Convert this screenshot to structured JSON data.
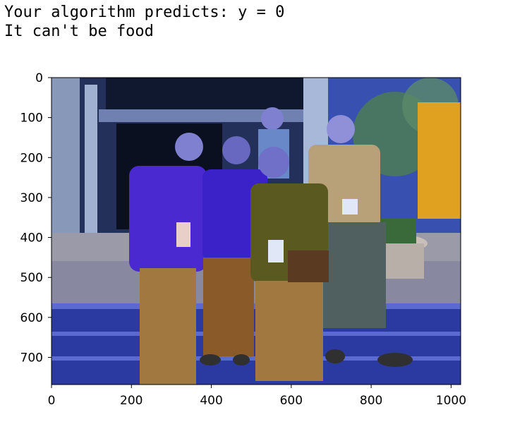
{
  "output": {
    "lines": [
      "",
      "Your algorithm predicts: y = 0",
      "It can't be food"
    ]
  },
  "image_plot": {
    "description_icon": "photo-of-five-people-icon",
    "x_ticks": [
      "0",
      "200",
      "400",
      "600",
      "800",
      "1000"
    ],
    "y_ticks": [
      "0",
      "100",
      "200",
      "300",
      "400",
      "500",
      "600",
      "700"
    ],
    "x_range": [
      0,
      1024
    ],
    "y_range": [
      0,
      768
    ]
  },
  "colors": {
    "sky_building": "#2a3a6a",
    "floor_blue": "#2a3aa0",
    "pavement": "#9a9aa8",
    "purple_shirt": "#4a2ad0",
    "tan_pants": "#a07840",
    "olive_shirt": "#5a5a20",
    "beige_shirt": "#b8a078",
    "skin": "#8080d0",
    "orange_banner": "#e0a020"
  }
}
